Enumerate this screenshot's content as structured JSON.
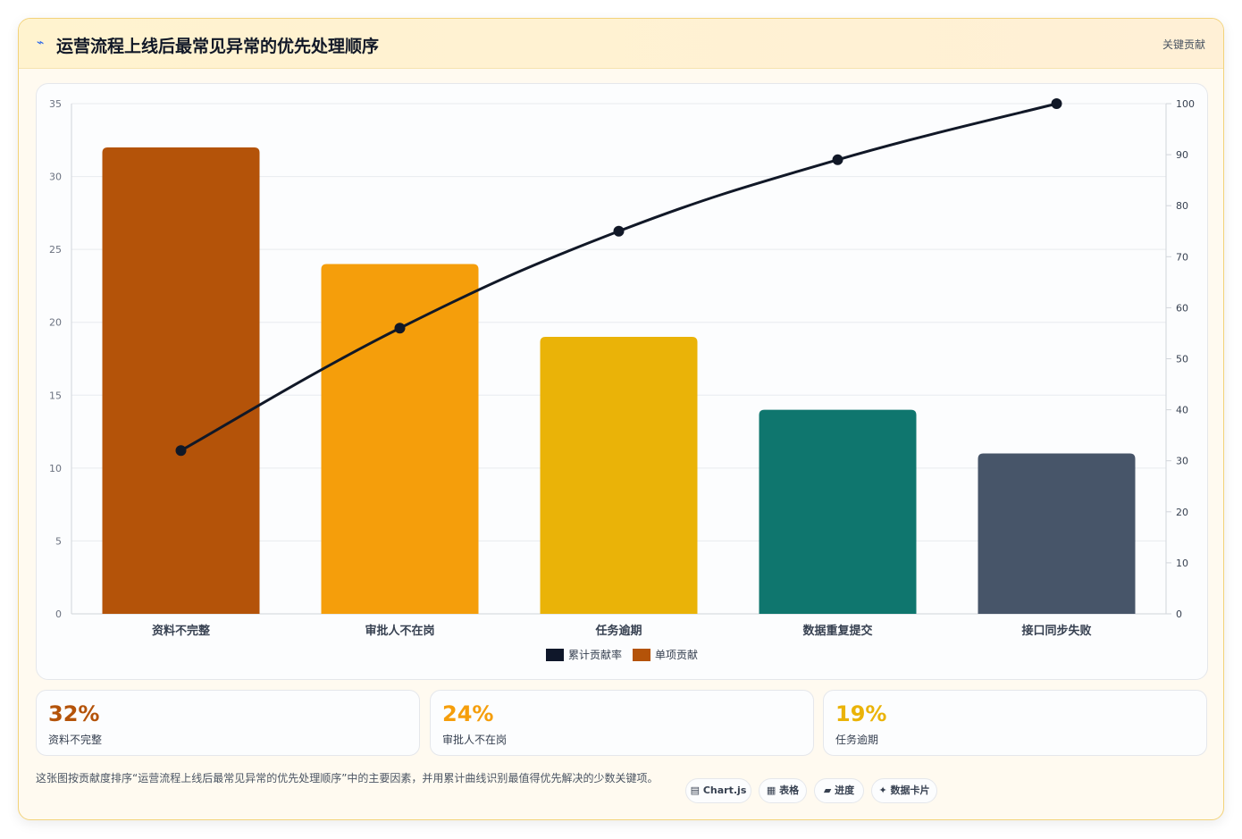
{
  "header": {
    "icon": "⌁",
    "title": "运营流程上线后最常见异常的优先处理顺序",
    "tag": "关键贡献"
  },
  "chart_data": {
    "type": "bar",
    "categories": [
      "资料不完整",
      "审批人不在岗",
      "任务逾期",
      "数据重复提交",
      "接口同步失败"
    ],
    "series": [
      {
        "name": "单项贡献",
        "type": "bar",
        "axis": "left",
        "values": [
          32,
          24,
          19,
          14,
          11
        ],
        "colors": [
          "#b45309",
          "#f59e0b",
          "#eab308",
          "#0f766e",
          "#475569"
        ]
      },
      {
        "name": "累计贡献率",
        "type": "line",
        "axis": "right",
        "values": [
          32,
          56,
          75,
          89,
          100
        ],
        "color": "#111827"
      }
    ],
    "y_left": {
      "min": 0,
      "max": 35,
      "ticks": [
        0,
        5,
        10,
        15,
        20,
        25,
        30,
        35
      ]
    },
    "y_right": {
      "min": 0,
      "max": 100,
      "ticks": [
        0,
        10,
        20,
        30,
        40,
        50,
        60,
        70,
        80,
        90,
        100
      ]
    },
    "grid": true,
    "legend": {
      "position": "bottom",
      "items": [
        {
          "label": "累计贡献率",
          "color": "#0f172a"
        },
        {
          "label": "单项贡献",
          "color": "#b45309"
        }
      ]
    }
  },
  "stats": [
    {
      "value": "32%",
      "label": "资料不完整",
      "color": "#b45309"
    },
    {
      "value": "24%",
      "label": "审批人不在岗",
      "color": "#f59e0b"
    },
    {
      "value": "19%",
      "label": "任务逾期",
      "color": "#eab308"
    }
  ],
  "footer": {
    "description": "这张图按贡献度排序“运营流程上线后最常见异常的优先处理顺序”中的主要因素，并用累计曲线识别最值得优先解决的少数关键项。",
    "chips": [
      {
        "icon": "▤",
        "label": "Chart.js"
      },
      {
        "icon": "▦",
        "label": "表格"
      },
      {
        "icon": "▰",
        "label": "进度"
      },
      {
        "icon": "✦",
        "label": "数据卡片"
      }
    ]
  }
}
